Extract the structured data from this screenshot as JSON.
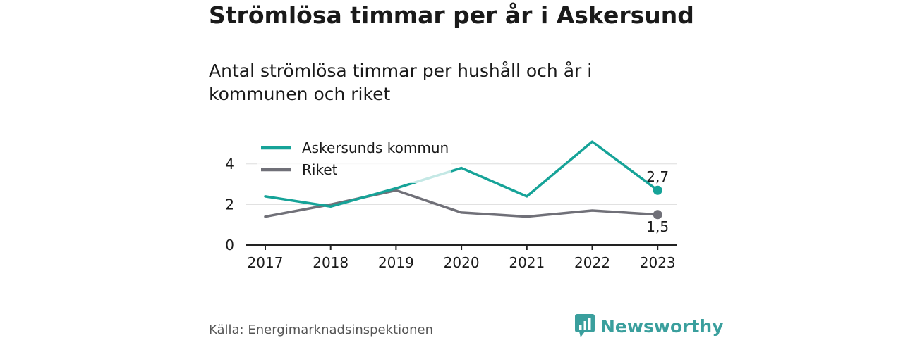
{
  "title": "Strömlösa timmar per år i Askersund",
  "subtitle": "Antal strömlösa timmar per hushåll och år i kommunen och riket",
  "source": "Källa: Energimarknadsinspektionen",
  "brand": "Newsworthy",
  "colors": {
    "askersund": "#16a398",
    "riket": "#707078",
    "grid": "#dddddd",
    "axis": "#222222",
    "brand": "#3a9f9d"
  },
  "chart_data": {
    "type": "line",
    "categories": [
      "2017",
      "2018",
      "2019",
      "2020",
      "2021",
      "2022",
      "2023"
    ],
    "series": [
      {
        "name": "Askersunds kommun",
        "values": [
          2.4,
          1.9,
          2.8,
          3.8,
          2.4,
          5.1,
          2.7
        ]
      },
      {
        "name": "Riket",
        "values": [
          1.4,
          2.0,
          2.7,
          1.6,
          1.4,
          1.7,
          1.5
        ]
      }
    ],
    "end_labels": [
      "2,7",
      "1,5"
    ],
    "yticks": [
      "0",
      "2",
      "4"
    ],
    "ylim": [
      0,
      5.1
    ],
    "legend": "top-left",
    "grid": true
  }
}
